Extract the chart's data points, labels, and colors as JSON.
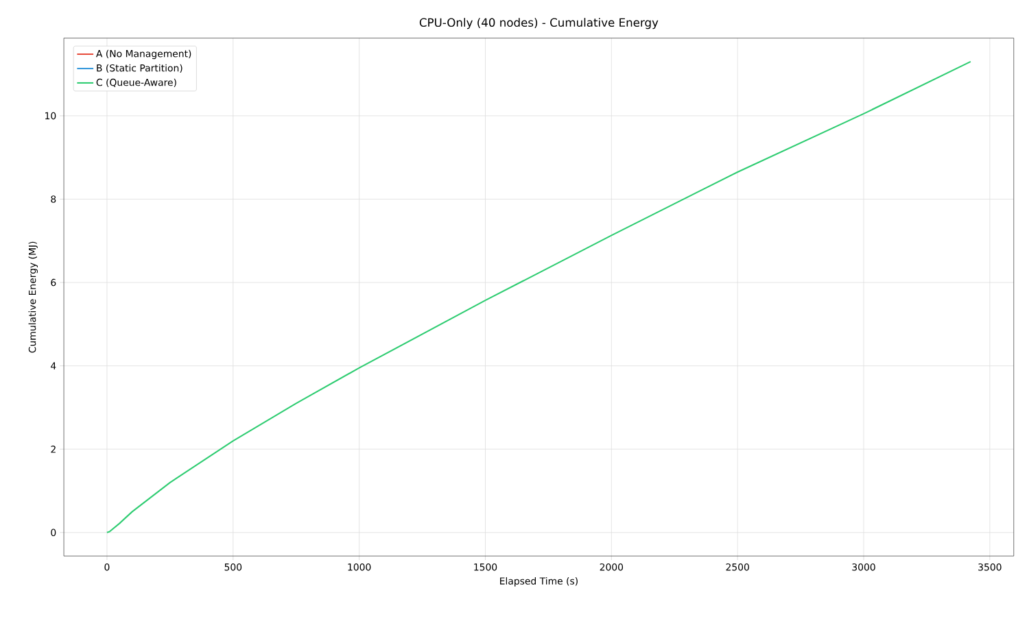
{
  "chart_data": {
    "type": "line",
    "title": "CPU-Only (40 nodes) - Cumulative Energy",
    "xlabel": "Elapsed Time (s)",
    "ylabel": "Cumulative Energy (MJ)",
    "x": [
      0,
      10,
      50,
      100,
      250,
      500,
      750,
      1000,
      1500,
      2000,
      2500,
      3000,
      3424
    ],
    "series": [
      {
        "name": "A (No Management)",
        "color": "#e74c3c",
        "values": [
          null,
          null,
          null,
          null,
          null,
          null,
          null,
          null,
          null,
          null,
          null,
          null,
          null
        ]
      },
      {
        "name": "B (Static Partition)",
        "color": "#3498db",
        "values": [
          null,
          null,
          null,
          null,
          null,
          null,
          null,
          null,
          null,
          null,
          null,
          null,
          null
        ]
      },
      {
        "name": "C (Queue-Aware)",
        "color": "#2ecc71",
        "values": [
          0,
          0.02,
          0.22,
          0.5,
          1.2,
          2.2,
          3.1,
          3.95,
          5.57,
          7.13,
          8.65,
          10.05,
          11.3
        ]
      }
    ],
    "xlim": [
      -171,
      3595
    ],
    "ylim": [
      -0.565,
      11.865
    ],
    "xticks": [
      0,
      500,
      1000,
      1500,
      2000,
      2500,
      3000,
      3500
    ],
    "yticks": [
      0,
      2,
      4,
      6,
      8,
      10
    ],
    "grid": true,
    "legend": "top left",
    "marker": "none",
    "line_style": "solid"
  }
}
